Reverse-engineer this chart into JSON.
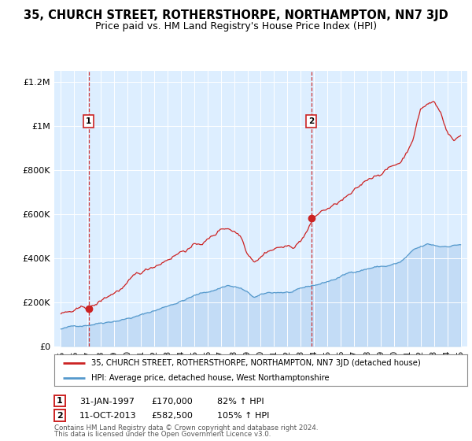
{
  "title": "35, CHURCH STREET, ROTHERSTHORPE, NORTHAMPTON, NN7 3JD",
  "subtitle": "Price paid vs. HM Land Registry's House Price Index (HPI)",
  "hpi_color": "#5599cc",
  "price_color": "#cc2222",
  "purchase1_date": 1997.08,
  "purchase1_price": 170000,
  "purchase2_date": 2013.78,
  "purchase2_price": 582500,
  "legend_line1": "35, CHURCH STREET, ROTHERSTHORPE, NORTHAMPTON, NN7 3JD (detached house)",
  "legend_line2": "HPI: Average price, detached house, West Northamptonshire",
  "footnote1": "Contains HM Land Registry data © Crown copyright and database right 2024.",
  "footnote2": "This data is licensed under the Open Government Licence v3.0.",
  "xmin": 1994.5,
  "xmax": 2025.5,
  "ymin": 0,
  "ymax": 1250000
}
